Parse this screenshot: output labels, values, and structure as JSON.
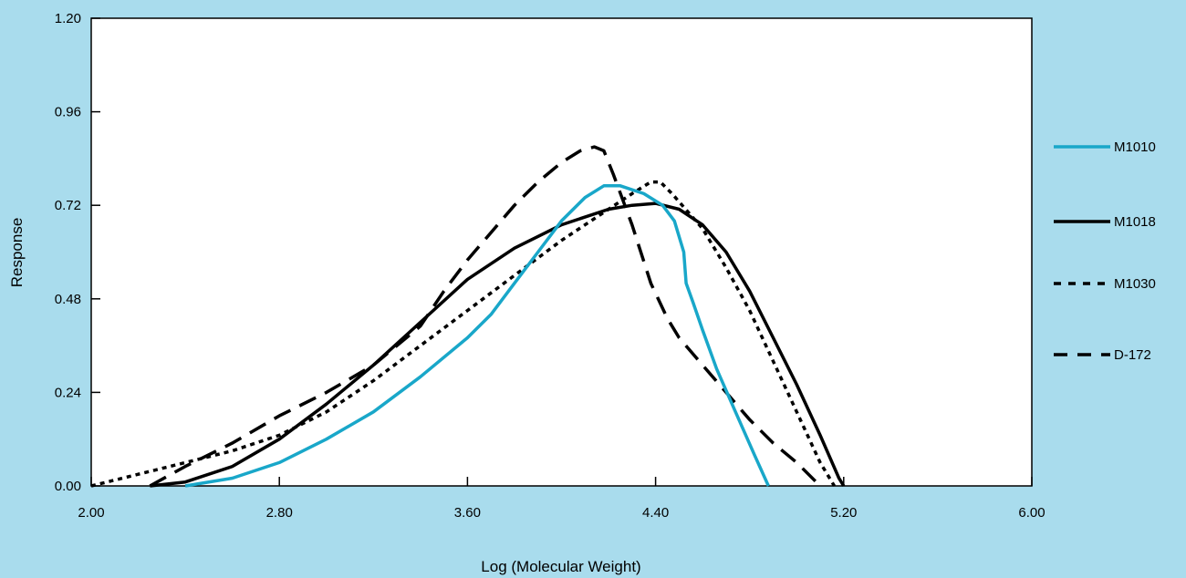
{
  "chart_data": {
    "type": "line",
    "xlabel": "Log (Molecular Weight)",
    "ylabel": "Response",
    "xlim": [
      2.0,
      6.0
    ],
    "ylim": [
      0.0,
      1.2
    ],
    "x_ticks": [
      "2.00",
      "2.80",
      "3.60",
      "4.40",
      "5.20",
      "6.00"
    ],
    "y_ticks": [
      "0.00",
      "0.24",
      "0.48",
      "0.72",
      "0.96",
      "1.20"
    ],
    "grid": false,
    "legend_position": "right",
    "series": [
      {
        "name": "M1010",
        "style": "solid",
        "color": "#19a7c9",
        "points": [
          [
            2.4,
            0.0
          ],
          [
            2.6,
            0.02
          ],
          [
            2.8,
            0.06
          ],
          [
            3.0,
            0.12
          ],
          [
            3.2,
            0.19
          ],
          [
            3.4,
            0.28
          ],
          [
            3.6,
            0.38
          ],
          [
            3.7,
            0.44
          ],
          [
            3.8,
            0.52
          ],
          [
            3.9,
            0.6
          ],
          [
            4.0,
            0.68
          ],
          [
            4.1,
            0.74
          ],
          [
            4.18,
            0.77
          ],
          [
            4.25,
            0.77
          ],
          [
            4.35,
            0.75
          ],
          [
            4.43,
            0.72
          ],
          [
            4.48,
            0.68
          ],
          [
            4.52,
            0.6
          ],
          [
            4.53,
            0.52
          ],
          [
            4.56,
            0.47
          ],
          [
            4.6,
            0.4
          ],
          [
            4.66,
            0.3
          ],
          [
            4.74,
            0.19
          ],
          [
            4.82,
            0.08
          ],
          [
            4.88,
            0.0
          ]
        ]
      },
      {
        "name": "M1018",
        "style": "solid",
        "color": "#000000",
        "points": [
          [
            2.25,
            0.0
          ],
          [
            2.4,
            0.01
          ],
          [
            2.6,
            0.05
          ],
          [
            2.8,
            0.12
          ],
          [
            3.0,
            0.21
          ],
          [
            3.2,
            0.31
          ],
          [
            3.4,
            0.42
          ],
          [
            3.6,
            0.53
          ],
          [
            3.8,
            0.61
          ],
          [
            4.0,
            0.67
          ],
          [
            4.2,
            0.71
          ],
          [
            4.3,
            0.72
          ],
          [
            4.4,
            0.725
          ],
          [
            4.5,
            0.71
          ],
          [
            4.6,
            0.67
          ],
          [
            4.7,
            0.6
          ],
          [
            4.8,
            0.5
          ],
          [
            4.9,
            0.38
          ],
          [
            5.0,
            0.26
          ],
          [
            5.1,
            0.13
          ],
          [
            5.18,
            0.02
          ],
          [
            5.2,
            0.0
          ]
        ]
      },
      {
        "name": "M1030",
        "style": "dotted",
        "color": "#000000",
        "points": [
          [
            2.0,
            0.0
          ],
          [
            2.2,
            0.03
          ],
          [
            2.4,
            0.06
          ],
          [
            2.6,
            0.09
          ],
          [
            2.8,
            0.13
          ],
          [
            3.0,
            0.19
          ],
          [
            3.2,
            0.27
          ],
          [
            3.4,
            0.36
          ],
          [
            3.6,
            0.45
          ],
          [
            3.8,
            0.54
          ],
          [
            4.0,
            0.63
          ],
          [
            4.2,
            0.71
          ],
          [
            4.3,
            0.75
          ],
          [
            4.38,
            0.78
          ],
          [
            4.42,
            0.78
          ],
          [
            4.47,
            0.75
          ],
          [
            4.6,
            0.66
          ],
          [
            4.7,
            0.56
          ],
          [
            4.8,
            0.45
          ],
          [
            4.9,
            0.32
          ],
          [
            5.0,
            0.19
          ],
          [
            5.1,
            0.06
          ],
          [
            5.16,
            0.0
          ]
        ]
      },
      {
        "name": "D-172",
        "style": "dashed",
        "color": "#000000",
        "points": [
          [
            2.25,
            0.0
          ],
          [
            2.4,
            0.05
          ],
          [
            2.6,
            0.11
          ],
          [
            2.8,
            0.18
          ],
          [
            3.0,
            0.24
          ],
          [
            3.2,
            0.31
          ],
          [
            3.4,
            0.41
          ],
          [
            3.5,
            0.5
          ],
          [
            3.6,
            0.58
          ],
          [
            3.7,
            0.65
          ],
          [
            3.8,
            0.72
          ],
          [
            3.9,
            0.78
          ],
          [
            4.0,
            0.83
          ],
          [
            4.08,
            0.86
          ],
          [
            4.14,
            0.87
          ],
          [
            4.18,
            0.86
          ],
          [
            4.22,
            0.8
          ],
          [
            4.3,
            0.67
          ],
          [
            4.38,
            0.52
          ],
          [
            4.45,
            0.43
          ],
          [
            4.5,
            0.38
          ],
          [
            4.6,
            0.31
          ],
          [
            4.7,
            0.24
          ],
          [
            4.8,
            0.17
          ],
          [
            4.9,
            0.11
          ],
          [
            5.0,
            0.06
          ],
          [
            5.1,
            0.0
          ]
        ]
      }
    ]
  }
}
